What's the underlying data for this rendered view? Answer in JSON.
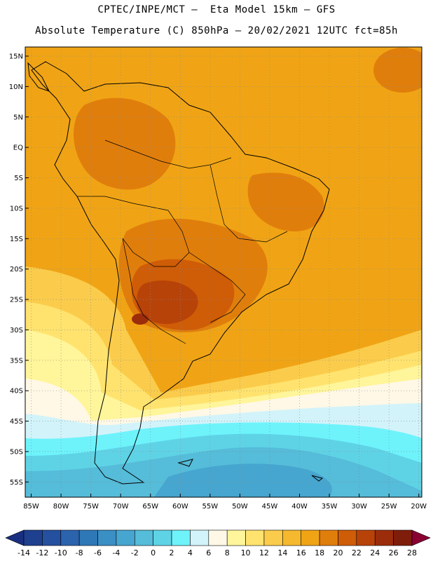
{
  "header": {
    "line1": "CPTEC/INPE/MCT –  Eta Model 15km – GFS",
    "line2": "Absolute Temperature (C) 850hPa – 20/02/2021 12UTC fct=85h"
  },
  "map": {
    "lat_labels": [
      "15N",
      "10N",
      "5N",
      "EQ",
      "5S",
      "10S",
      "15S",
      "20S",
      "25S",
      "30S",
      "35S",
      "40S",
      "45S",
      "50S",
      "55S"
    ],
    "lon_labels": [
      "85W",
      "80W",
      "75W",
      "70W",
      "65W",
      "60W",
      "55W",
      "50W",
      "45W",
      "40W",
      "35W",
      "30W",
      "25W",
      "20W"
    ],
    "lat_range": [
      -57.5,
      16.5
    ],
    "lon_range": [
      -86,
      -19.5
    ]
  },
  "colorbar": {
    "ticks": [
      "-14",
      "-12",
      "-10",
      "-8",
      "-6",
      "-4",
      "-2",
      "0",
      "2",
      "4",
      "6",
      "8",
      "10",
      "12",
      "14",
      "16",
      "18",
      "20",
      "22",
      "24",
      "26",
      "28"
    ],
    "colors": [
      "#1f3f8f",
      "#24509f",
      "#2b63ad",
      "#2f78b8",
      "#3a8fc4",
      "#46a6cf",
      "#55bcd9",
      "#5fd3e6",
      "#6ef3fb",
      "#d2f3fa",
      "#fff8e6",
      "#fff59a",
      "#ffe36e",
      "#fbcc4b",
      "#f5b82e",
      "#f0a415",
      "#e07e0c",
      "#cf5c07",
      "#b84309",
      "#9c2d0a",
      "#7f1d0b"
    ],
    "under_color": "#1a2f80",
    "over_color": "#8a0030"
  }
}
